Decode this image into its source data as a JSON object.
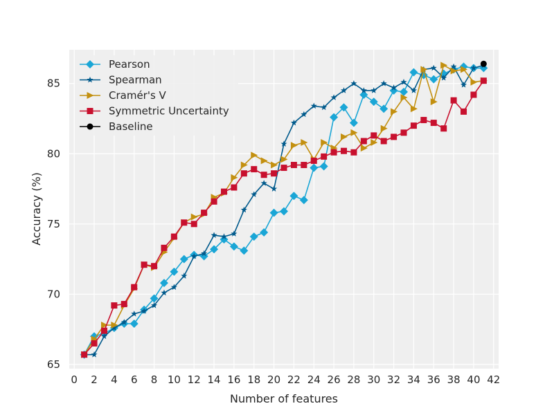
{
  "chart_data": {
    "type": "line",
    "title": "",
    "xlabel": "Number of features",
    "ylabel": "Accuracy (%)",
    "xlim": [
      -0.5,
      42.5
    ],
    "ylim": [
      64.7,
      87.4
    ],
    "xticks": [
      0,
      2,
      4,
      6,
      8,
      10,
      12,
      14,
      16,
      18,
      20,
      22,
      24,
      26,
      28,
      30,
      32,
      34,
      36,
      38,
      40,
      42
    ],
    "yticks": [
      65,
      70,
      75,
      80,
      85
    ],
    "grid": true,
    "legend_position": "top-left",
    "series": [
      {
        "name": "Pearson",
        "color": "#1aa6d6",
        "marker": "diamond",
        "x": [
          1,
          2,
          3,
          4,
          5,
          6,
          7,
          8,
          9,
          10,
          11,
          12,
          13,
          14,
          15,
          16,
          17,
          18,
          19,
          20,
          21,
          22,
          23,
          24,
          25,
          26,
          27,
          28,
          29,
          30,
          31,
          32,
          33,
          34,
          35,
          36,
          37,
          38,
          39,
          40,
          41
        ],
        "values": [
          65.7,
          67.0,
          67.2,
          67.6,
          67.9,
          67.9,
          68.9,
          69.7,
          70.8,
          71.6,
          72.5,
          72.8,
          72.7,
          73.2,
          73.9,
          73.4,
          73.1,
          74.1,
          74.4,
          75.8,
          75.9,
          77.0,
          76.7,
          79.0,
          79.1,
          82.6,
          83.3,
          82.2,
          84.2,
          83.7,
          83.2,
          84.5,
          84.4,
          85.8,
          85.6,
          85.3,
          85.7,
          86.0,
          86.2,
          86.1,
          86.1
        ]
      },
      {
        "name": "Spearman",
        "color": "#005a8c",
        "marker": "star",
        "x": [
          1,
          2,
          3,
          4,
          5,
          6,
          7,
          8,
          9,
          10,
          11,
          12,
          13,
          14,
          15,
          16,
          17,
          18,
          19,
          20,
          21,
          22,
          23,
          24,
          25,
          26,
          27,
          28,
          29,
          30,
          31,
          32,
          33,
          34,
          35,
          36,
          37,
          38,
          39,
          40,
          41
        ],
        "values": [
          65.7,
          65.7,
          67.0,
          67.6,
          68.0,
          68.6,
          68.8,
          69.2,
          70.1,
          70.5,
          71.3,
          72.7,
          72.9,
          74.2,
          74.1,
          74.3,
          76.0,
          77.1,
          77.9,
          77.5,
          80.7,
          82.2,
          82.8,
          83.4,
          83.3,
          84.0,
          84.5,
          85.0,
          84.5,
          84.5,
          85.0,
          84.7,
          85.1,
          84.5,
          86.0,
          86.1,
          85.4,
          86.2,
          84.9,
          86.1,
          86.3
        ]
      },
      {
        "name": "Cramér's V",
        "color": "#c39010",
        "marker": "triangle-right",
        "x": [
          1,
          2,
          3,
          4,
          5,
          6,
          7,
          8,
          9,
          10,
          11,
          12,
          13,
          14,
          15,
          16,
          17,
          18,
          19,
          20,
          21,
          22,
          23,
          24,
          25,
          26,
          27,
          28,
          29,
          30,
          31,
          32,
          33,
          34,
          35,
          36,
          37,
          38,
          39,
          40,
          41
        ],
        "values": [
          65.7,
          66.8,
          67.8,
          67.8,
          69.2,
          70.4,
          72.1,
          71.9,
          73.0,
          74.0,
          75.1,
          75.5,
          75.7,
          76.9,
          77.2,
          78.3,
          79.2,
          79.9,
          79.5,
          79.2,
          79.6,
          80.6,
          80.8,
          79.6,
          80.8,
          80.4,
          81.2,
          81.5,
          80.4,
          80.8,
          81.8,
          83.0,
          84.0,
          83.2,
          86.0,
          83.7,
          86.3,
          85.9,
          86.0,
          85.1,
          85.2
        ]
      },
      {
        "name": "Symmetric Uncertainty",
        "color": "#c8102e",
        "marker": "square",
        "x": [
          1,
          2,
          3,
          4,
          5,
          6,
          7,
          8,
          9,
          10,
          11,
          12,
          13,
          14,
          15,
          16,
          17,
          18,
          19,
          20,
          21,
          22,
          23,
          24,
          25,
          26,
          27,
          28,
          29,
          30,
          31,
          32,
          33,
          34,
          35,
          36,
          37,
          38,
          39,
          40,
          41
        ],
        "values": [
          65.7,
          66.5,
          67.4,
          69.2,
          69.3,
          70.5,
          72.1,
          72.0,
          73.3,
          74.1,
          75.1,
          75.0,
          75.8,
          76.6,
          77.3,
          77.6,
          78.6,
          78.9,
          78.5,
          78.6,
          79.0,
          79.2,
          79.2,
          79.5,
          79.8,
          80.1,
          80.2,
          80.1,
          80.9,
          81.3,
          80.9,
          81.2,
          81.5,
          82.0,
          82.4,
          82.2,
          81.8,
          83.8,
          83.0,
          84.2,
          85.2
        ]
      },
      {
        "name": "Baseline",
        "color": "#000000",
        "marker": "circle",
        "x": [
          41
        ],
        "values": [
          86.4
        ]
      }
    ]
  }
}
